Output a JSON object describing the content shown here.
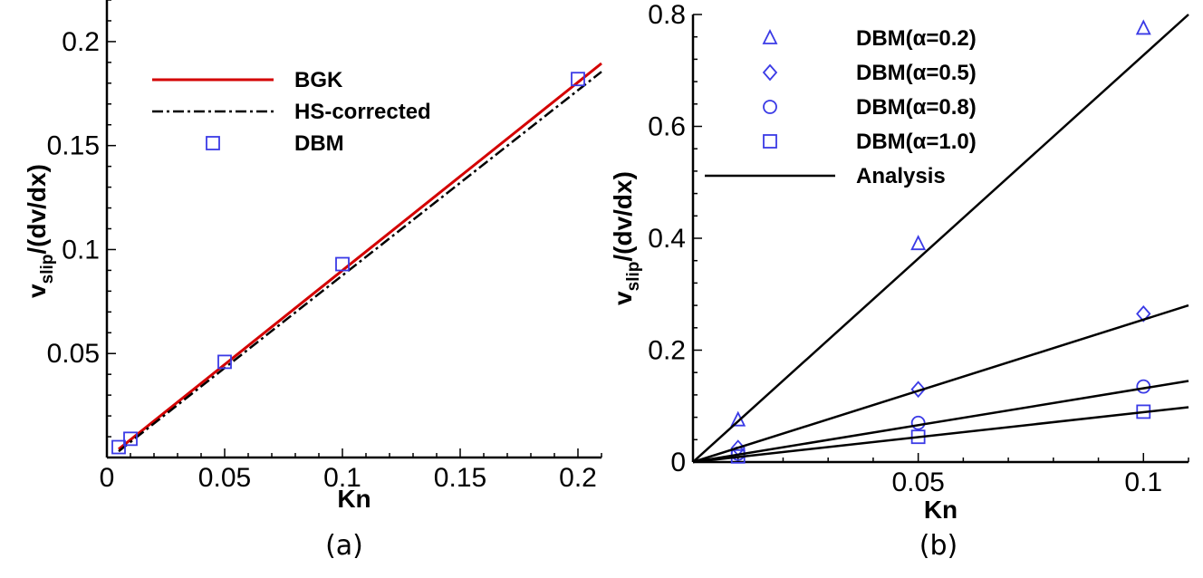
{
  "chart_data": [
    {
      "type": "line",
      "panel_label": "(a)",
      "xlabel": "Kn",
      "ylabel": {
        "main": "v",
        "sub": "slip",
        "rest": "/(dv/dx)"
      },
      "xlim": [
        0,
        0.21
      ],
      "ylim": [
        0,
        0.22
      ],
      "xticks": [
        0,
        0.05,
        0.1,
        0.15,
        0.2
      ],
      "xtick_labels": [
        "0",
        "0.05",
        "0.1",
        "0.15",
        "0.2"
      ],
      "yticks": [
        0.05,
        0.1,
        0.15,
        0.2
      ],
      "ytick_labels": [
        "0.05",
        "0.1",
        "0.15",
        "0.2"
      ],
      "series": [
        {
          "name": "BGK",
          "style": "solid",
          "color": "#d40000",
          "x": [
            0.005,
            0.21
          ],
          "y": [
            0.004,
            0.1895
          ]
        },
        {
          "name": "HS-corrected",
          "style": "dashdot",
          "color": "#000000",
          "x": [
            0.005,
            0.21
          ],
          "y": [
            0.003,
            0.1855
          ]
        },
        {
          "name": "DBM",
          "style": "square",
          "color": "#3a3ae6",
          "x": [
            0.005,
            0.01,
            0.05,
            0.1,
            0.2
          ],
          "y": [
            0.005,
            0.009,
            0.046,
            0.093,
            0.182
          ]
        }
      ]
    },
    {
      "type": "line",
      "panel_label": "(b)",
      "xlabel": "Kn",
      "ylabel": {
        "main": "v",
        "sub": "slip",
        "rest": "/(dv/dx)"
      },
      "xlim": [
        0,
        0.11
      ],
      "ylim": [
        0,
        0.8
      ],
      "xticks": [
        0.05,
        0.1
      ],
      "xtick_labels": [
        "0.05",
        "0.1"
      ],
      "yticks": [
        0,
        0.2,
        0.4,
        0.6,
        0.8
      ],
      "ytick_labels": [
        "0",
        "0.2",
        "0.4",
        "0.6",
        "0.8"
      ],
      "series": [
        {
          "name": "DBM(α=0.2)",
          "style": "triangle",
          "color": "#3a3ae6",
          "x": [
            0.01,
            0.05,
            0.1
          ],
          "y": [
            0.075,
            0.39,
            0.775
          ]
        },
        {
          "name": "DBM(α=0.5)",
          "style": "diamond",
          "color": "#3a3ae6",
          "x": [
            0.01,
            0.05,
            0.1
          ],
          "y": [
            0.025,
            0.13,
            0.265
          ]
        },
        {
          "name": "DBM(α=0.8)",
          "style": "circle",
          "color": "#3a3ae6",
          "x": [
            0.01,
            0.05,
            0.1
          ],
          "y": [
            0.015,
            0.07,
            0.135
          ]
        },
        {
          "name": "DBM(α=1.0)",
          "style": "square",
          "color": "#3a3ae6",
          "x": [
            0.01,
            0.05,
            0.1
          ],
          "y": [
            0.01,
            0.045,
            0.09
          ]
        },
        {
          "name": "Analysis",
          "style": "solid",
          "color": "#000000",
          "show_in_legend": true,
          "lines": [
            {
              "x": [
                0,
                0.11
              ],
              "y": [
                0,
                0.8
              ]
            },
            {
              "x": [
                0,
                0.11
              ],
              "y": [
                0,
                0.28
              ]
            },
            {
              "x": [
                0,
                0.11
              ],
              "y": [
                0,
                0.145
              ]
            },
            {
              "x": [
                0,
                0.11
              ],
              "y": [
                0,
                0.098
              ]
            }
          ]
        }
      ]
    }
  ]
}
